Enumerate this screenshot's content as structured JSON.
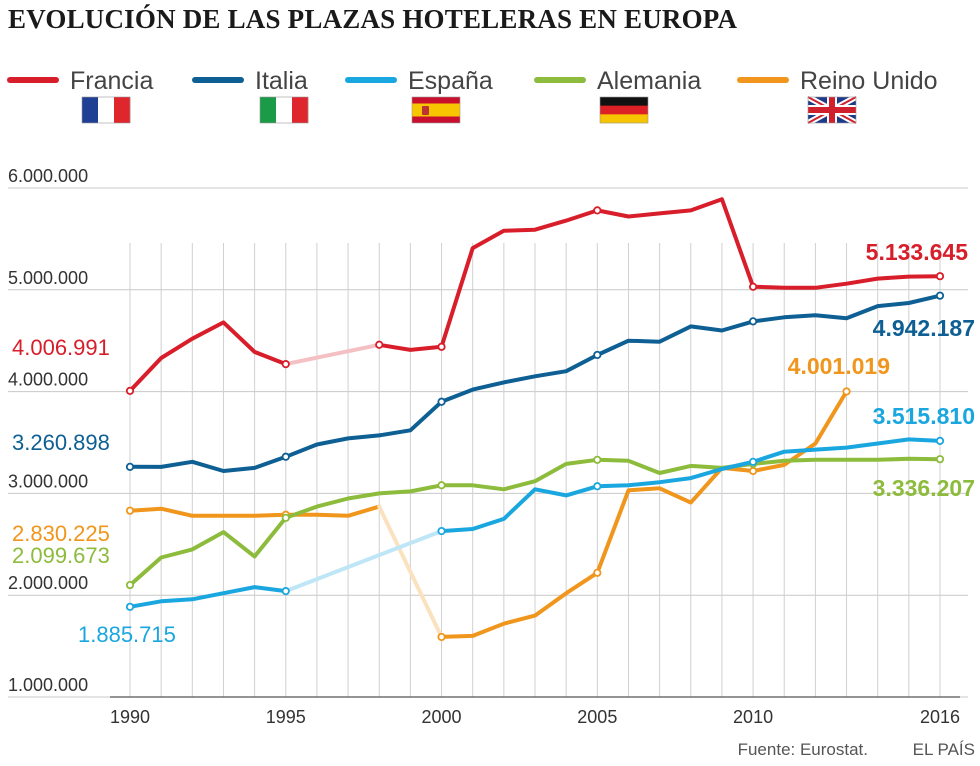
{
  "chart_data": {
    "type": "line",
    "title": "EVOLUCIÓN DE LAS PLAZAS HOTELERAS EN EUROPA",
    "xlabel": "",
    "ylabel": "",
    "ylim": [
      1000000,
      6000000
    ],
    "xlim": [
      1990,
      2016
    ],
    "y_ticks": [
      {
        "value": 1000000,
        "label": "1.000.000"
      },
      {
        "value": 2000000,
        "label": "2.000.000"
      },
      {
        "value": 3000000,
        "label": "3.000.000"
      },
      {
        "value": 4000000,
        "label": "4.000.000"
      },
      {
        "value": 5000000,
        "label": "5.000.000"
      },
      {
        "value": 6000000,
        "label": "6.000.000"
      }
    ],
    "x_ticks": [
      {
        "value": 1990,
        "label": "1990"
      },
      {
        "value": 1995,
        "label": "1995"
      },
      {
        "value": 2000,
        "label": "2000"
      },
      {
        "value": 2005,
        "label": "2005"
      },
      {
        "value": 2010,
        "label": "2010"
      },
      {
        "value": 2016,
        "label": "2016"
      }
    ],
    "series": [
      {
        "name": "Francia",
        "color": "#d81e2a",
        "flag": "france-flag-icon",
        "x": [
          1990,
          1991,
          1992,
          1993,
          1994,
          1995,
          1998,
          1999,
          2000,
          2001,
          2002,
          2003,
          2004,
          2005,
          2006,
          2007,
          2008,
          2009,
          2010,
          2011,
          2012,
          2013,
          2014,
          2015,
          2016
        ],
        "values": [
          4006991,
          4330000,
          4520000,
          4680000,
          4390000,
          4270000,
          4460000,
          4410000,
          4440000,
          5410000,
          5580000,
          5590000,
          5680000,
          5780000,
          5720000,
          5750000,
          5780000,
          5890000,
          5030000,
          5020000,
          5020000,
          5060000,
          5110000,
          5130000,
          5133645
        ],
        "gaps": [
          [
            1995,
            1998
          ]
        ],
        "markers": [
          1990,
          1995,
          1998,
          2000,
          2005,
          2010,
          2016
        ]
      },
      {
        "name": "Italia",
        "color": "#0e5f93",
        "flag": "italy-flag-icon",
        "x": [
          1990,
          1991,
          1992,
          1993,
          1994,
          1995,
          1996,
          1997,
          1998,
          1999,
          2000,
          2001,
          2002,
          2003,
          2004,
          2005,
          2006,
          2007,
          2008,
          2009,
          2010,
          2011,
          2012,
          2013,
          2014,
          2015,
          2016
        ],
        "values": [
          3260898,
          3260000,
          3310000,
          3220000,
          3250000,
          3360000,
          3480000,
          3540000,
          3570000,
          3620000,
          3900000,
          4020000,
          4090000,
          4150000,
          4200000,
          4360000,
          4500000,
          4490000,
          4640000,
          4600000,
          4690000,
          4730000,
          4750000,
          4720000,
          4840000,
          4870000,
          4942187
        ],
        "gaps": [],
        "markers": [
          1990,
          1995,
          2000,
          2005,
          2010,
          2016
        ]
      },
      {
        "name": "España",
        "color": "#1aa6df",
        "flag": "spain-flag-icon",
        "x": [
          1990,
          1991,
          1992,
          1993,
          1994,
          1995,
          2000,
          2001,
          2002,
          2003,
          2004,
          2005,
          2006,
          2007,
          2008,
          2009,
          2010,
          2011,
          2012,
          2013,
          2014,
          2015,
          2016
        ],
        "values": [
          1885715,
          1940000,
          1960000,
          2020000,
          2080000,
          2040000,
          2630000,
          2650000,
          2750000,
          3040000,
          2980000,
          3070000,
          3080000,
          3110000,
          3150000,
          3240000,
          3310000,
          3410000,
          3430000,
          3450000,
          3490000,
          3530000,
          3515810
        ],
        "gaps": [
          [
            1995,
            2000
          ]
        ],
        "markers": [
          1990,
          1995,
          2000,
          2005,
          2010,
          2016
        ]
      },
      {
        "name": "Alemania",
        "color": "#8dbb3c",
        "flag": "germany-flag-icon",
        "x": [
          1990,
          1991,
          1992,
          1993,
          1994,
          1995,
          1996,
          1997,
          1998,
          1999,
          2000,
          2001,
          2002,
          2003,
          2004,
          2005,
          2006,
          2007,
          2008,
          2009,
          2010,
          2011,
          2012,
          2013,
          2014,
          2015,
          2016
        ],
        "values": [
          2099673,
          2370000,
          2450000,
          2620000,
          2380000,
          2760000,
          2870000,
          2950000,
          3000000,
          3020000,
          3080000,
          3080000,
          3040000,
          3120000,
          3290000,
          3330000,
          3320000,
          3200000,
          3270000,
          3250000,
          3290000,
          3320000,
          3330000,
          3330000,
          3330000,
          3340000,
          3336207
        ],
        "gaps": [],
        "markers": [
          1990,
          1995,
          2000,
          2005,
          2010,
          2016
        ]
      },
      {
        "name": "Reino Unido",
        "color": "#f0961c",
        "flag": "uk-flag-icon",
        "x": [
          1990,
          1991,
          1992,
          1993,
          1994,
          1995,
          1996,
          1997,
          1998,
          2000,
          2001,
          2002,
          2003,
          2004,
          2005,
          2006,
          2007,
          2008,
          2009,
          2010,
          2011,
          2012,
          2013
        ],
        "values": [
          2830225,
          2850000,
          2780000,
          2780000,
          2780000,
          2790000,
          2790000,
          2780000,
          2870000,
          1590000,
          1600000,
          1720000,
          1800000,
          2020000,
          2220000,
          3030000,
          3050000,
          2910000,
          3250000,
          3220000,
          3280000,
          3490000,
          4001019
        ],
        "gaps": [
          [
            1998,
            2000
          ]
        ],
        "markers": [
          1990,
          1995,
          2000,
          2005,
          2010,
          2013
        ]
      }
    ],
    "annotations": [
      {
        "series": "Francia",
        "text": "4.006.991",
        "position": "start"
      },
      {
        "series": "Italia",
        "text": "3.260.898",
        "position": "start"
      },
      {
        "series": "Reino Unido",
        "text": "2.830.225",
        "position": "start"
      },
      {
        "series": "Alemania",
        "text": "2.099.673",
        "position": "start"
      },
      {
        "series": "España",
        "text": "1.885.715",
        "position": "start"
      },
      {
        "series": "Francia",
        "text": "5.133.645",
        "position": "end"
      },
      {
        "series": "Italia",
        "text": "4.942.187",
        "position": "end"
      },
      {
        "series": "Reino Unido",
        "text": "4.001.019",
        "position": "end"
      },
      {
        "series": "España",
        "text": "3.515.810",
        "position": "end"
      },
      {
        "series": "Alemania",
        "text": "3.336.207",
        "position": "end"
      }
    ],
    "legend_position": "top"
  },
  "footer": {
    "source": "Fuente: Eurostat.",
    "publisher": "EL PAÍS"
  }
}
